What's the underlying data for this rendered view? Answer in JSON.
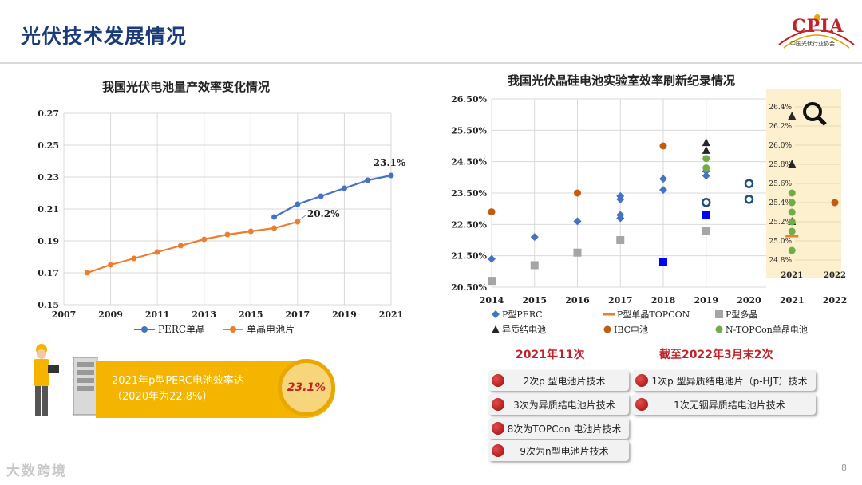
{
  "header": {
    "title": "光伏技术发展情况",
    "logo_text": "CPIA",
    "logo_sub": "中国光伏行业协会"
  },
  "left_chart": {
    "chart_data": {
      "type": "line",
      "title": "我国光伏电池量产效率变化情况",
      "x_ticks": [
        "2007",
        "2009",
        "2011",
        "2013",
        "2015",
        "2017",
        "2019",
        "2021"
      ],
      "y_ticks": [
        "0.27",
        "0.25",
        "0.23",
        "0.21",
        "0.19",
        "0.17",
        "0.15"
      ],
      "ylim": [
        0.15,
        0.27
      ],
      "xlim": [
        2007,
        2021
      ],
      "series": [
        {
          "name": "PERC单晶",
          "color": "#4472c4",
          "x": [
            2016,
            2017,
            2018,
            2019,
            2020,
            2021
          ],
          "values": [
            0.205,
            0.213,
            0.218,
            0.223,
            0.228,
            0.231
          ]
        },
        {
          "name": "单晶电池片",
          "color": "#ed7d31",
          "x": [
            2008,
            2009,
            2010,
            2011,
            2012,
            2013,
            2014,
            2015,
            2016,
            2017
          ],
          "values": [
            0.17,
            0.175,
            0.179,
            0.183,
            0.187,
            0.191,
            0.194,
            0.196,
            0.198,
            0.202
          ]
        }
      ],
      "annotations": [
        "23.1%",
        "20.2%"
      ]
    }
  },
  "right_chart": {
    "chart_data": {
      "type": "scatter",
      "title": "我国光伏晶硅电池实验室效率刷新纪录情况",
      "x_ticks": [
        "2014",
        "2015",
        "2016",
        "2017",
        "2018",
        "2019",
        "2020",
        "2021",
        "2022"
      ],
      "y_ticks": [
        "26.50%",
        "25.50%",
        "24.50%",
        "23.50%",
        "22.50%",
        "21.50%",
        "20.50%"
      ],
      "ylim": [
        20.5,
        26.5
      ],
      "inset_y_ticks": [
        "26.4%",
        "26.2%",
        "26.0%",
        "25.8%",
        "25.6%",
        "25.4%",
        "25.2%",
        "25.0%",
        "24.8%"
      ],
      "inset_ylim": [
        24.7,
        26.5
      ],
      "inset_x_ticks": [
        "2021",
        "2022"
      ],
      "series": [
        {
          "name": "P型PERC",
          "marker": "diamond",
          "color": "#4472c4",
          "points": [
            [
              2014,
              21.4
            ],
            [
              2015,
              22.1
            ],
            [
              2016,
              22.6
            ],
            [
              2017,
              22.7
            ],
            [
              2017,
              22.8
            ],
            [
              2017,
              23.3
            ],
            [
              2017,
              23.4
            ],
            [
              2018,
              23.6
            ],
            [
              2018,
              23.95
            ],
            [
              2019,
              24.05
            ],
            [
              2019,
              24.2
            ]
          ]
        },
        {
          "name": "P型单晶TOPCON",
          "marker": "dash",
          "color": "#ed7d31",
          "points": [],
          "inset_points": [
            [
              2021,
              25.05
            ]
          ]
        },
        {
          "name": "P型多晶",
          "marker": "square",
          "color": "#a5a5a5",
          "points": [
            [
              2014,
              20.7
            ],
            [
              2015,
              21.2
            ],
            [
              2016,
              21.6
            ],
            [
              2017,
              22.0
            ],
            [
              2019,
              22.3
            ]
          ]
        },
        {
          "name": "异质结电池",
          "marker": "triangle",
          "color": "#262626",
          "points": [
            [
              2019,
              24.85
            ],
            [
              2019,
              25.1
            ]
          ],
          "inset_points": [
            [
              2021,
              25.2
            ],
            [
              2021,
              25.8
            ],
            [
              2021,
              26.3
            ]
          ]
        },
        {
          "name": "IBC电池",
          "marker": "circle",
          "color": "#c55a11",
          "points": [
            [
              2014,
              22.9
            ],
            [
              2016,
              23.5
            ],
            [
              2018,
              25.0
            ]
          ],
          "inset_points": [
            [
              2022,
              25.4
            ]
          ]
        },
        {
          "name": "N-TOPCon单晶电池",
          "marker": "circle",
          "color": "#70ad47",
          "points": [
            [
              2019,
              24.3
            ],
            [
              2019,
              24.6
            ]
          ],
          "inset_points": [
            [
              2021,
              24.9
            ],
            [
              2021,
              25.1
            ],
            [
              2021,
              25.2
            ],
            [
              2021,
              25.3
            ],
            [
              2021,
              25.4
            ],
            [
              2021,
              25.5
            ]
          ]
        }
      ],
      "extra_markers": [
        {
          "name": "n-type ring",
          "marker": "ring",
          "color": "#1f4e79",
          "points": [
            [
              2019,
              23.2
            ],
            [
              2020,
              23.3
            ],
            [
              2020,
              23.8
            ]
          ]
        },
        {
          "name": "blue square",
          "marker": "square",
          "color": "#0000ff",
          "points": [
            [
              2018,
              21.3
            ],
            [
              2019,
              22.8
            ]
          ]
        }
      ]
    }
  },
  "callout": {
    "line1": "2021年p型PERC电池效率达",
    "line2": "（2020年为22.8%）",
    "badge": "23.1%"
  },
  "records": {
    "left_heading": "2021年11次",
    "right_heading": "截至2022年3月末2次",
    "left_items": [
      "2次p 型电池片技术",
      "3次为异质结电池片技术",
      "8次为TOPCon 电池片技术",
      "9次为n型电池片技术"
    ],
    "right_items": [
      "1次p 型异质结电池片（p-HJT）技术",
      "1次无铟异质结电池片技术"
    ]
  },
  "footer": {
    "watermark": "大数跨境",
    "page": "8"
  }
}
